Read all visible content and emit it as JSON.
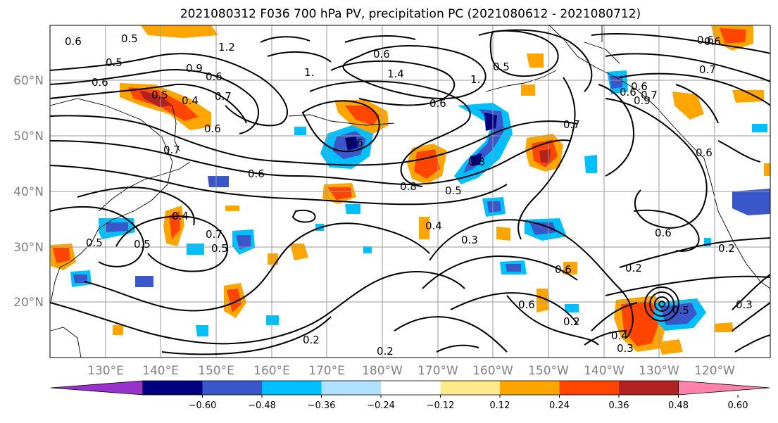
{
  "title": "2021080312 F036 700 hPa PV, precipitation PC (2021080612 - 2021080712)",
  "map": {
    "lat_labels": [
      "60°N",
      "50°N",
      "40°N",
      "30°N",
      "20°N"
    ],
    "lon_labels": [
      "130°E",
      "140°E",
      "150°E",
      "160°E",
      "170°E",
      "180°W",
      "170°W",
      "160°W",
      "150°W",
      "140°W",
      "130°W",
      "120°W"
    ],
    "gridlines": true
  },
  "colorbar": {
    "colors": [
      "#9932cc",
      "#000080",
      "#3a57c9",
      "#00bfff",
      "#b0e2ff",
      "#ffffff",
      "#ffeb8c",
      "#ffa500",
      "#ff4500",
      "#b22222",
      "#ff82ab"
    ],
    "tick_labels": [
      "−0.60",
      "−0.48",
      "−0.36",
      "−0.24",
      "−0.12",
      "0.12",
      "0.24",
      "0.36",
      "0.48",
      "0.60"
    ],
    "extend": "both"
  },
  "contour_labels": [
    "0.6",
    "0.5",
    "1.2",
    "0.9",
    "0.6",
    "1.",
    "1.4",
    "0.6",
    "0.5",
    "0.5",
    "0.6",
    "0.7",
    "0.5",
    "0.6",
    "0.4",
    "0.6",
    "0.7",
    "0.6",
    "1.",
    "0.6",
    "0.7",
    "0.6",
    "0.7",
    "0.6",
    "0.8",
    "0.5",
    "0.6",
    "0.8",
    "0.9",
    "0.6",
    "0.4",
    "0.3",
    "0.5",
    "0.4",
    "0.5",
    "0.7",
    "0.5",
    "0.6",
    "0.2",
    "0.6",
    "0.2",
    "0.2",
    "0.3",
    "0.2",
    "0.2",
    "0.4",
    "0.3",
    "0.5",
    "0.6",
    "0.7",
    "0.6"
  ]
}
